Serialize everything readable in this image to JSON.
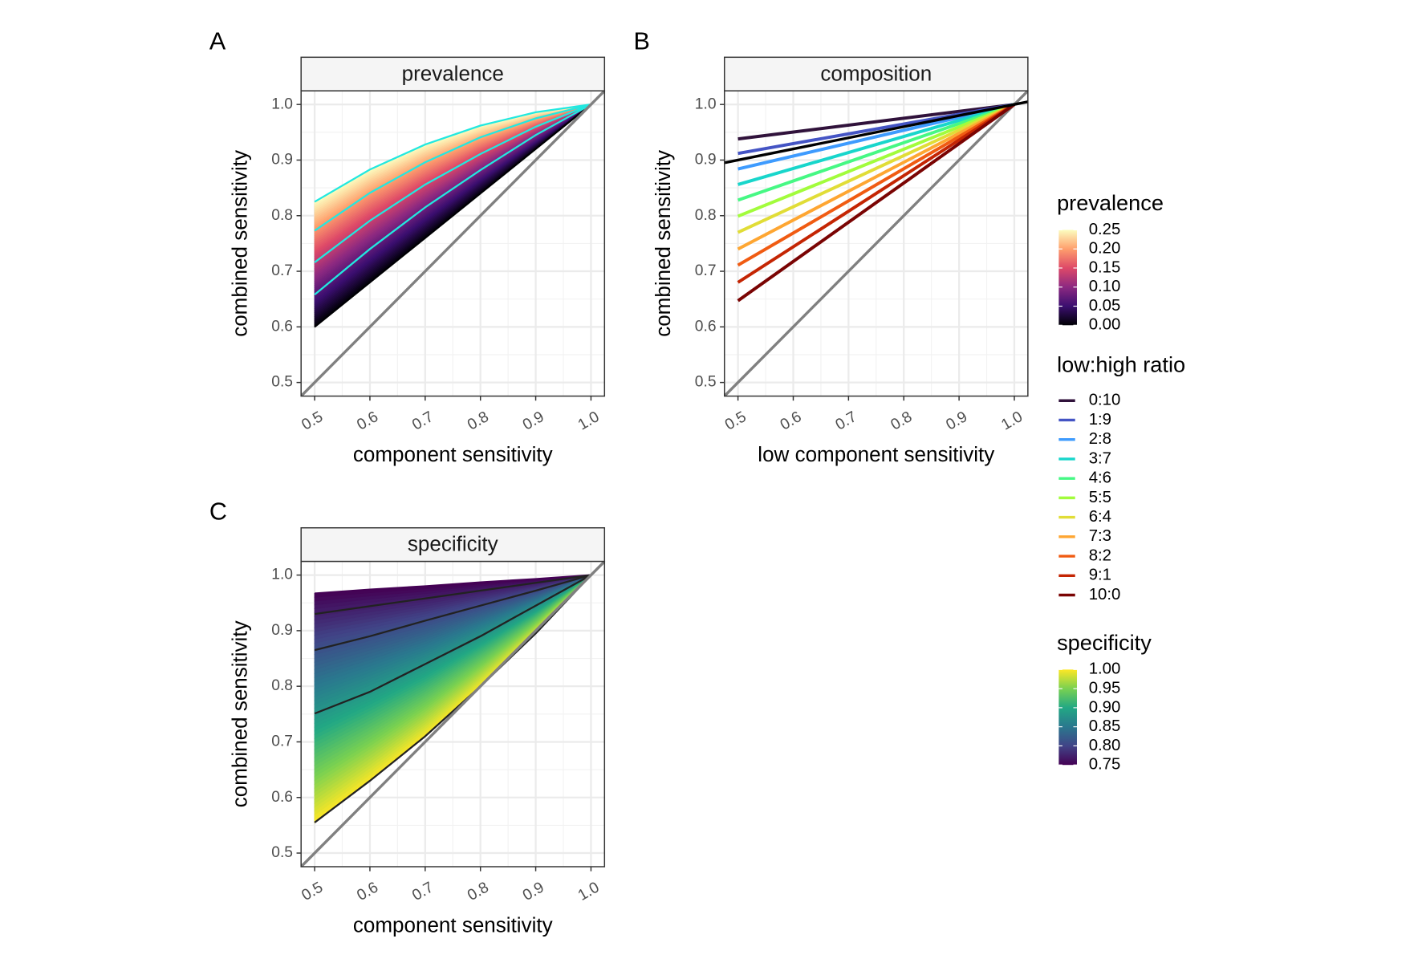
{
  "chart_data": [
    {
      "type": "line",
      "label": "A",
      "title": "prevalence",
      "xlabel": "component sensitivity",
      "ylabel": "combined sensitivity",
      "xlim": [
        0.4755,
        1.0245
      ],
      "ylim": [
        0.4755,
        1.0245
      ],
      "xticks": [
        0.5,
        0.6,
        0.7,
        0.8,
        0.9,
        {
          "value": 1,
          "label": "1.0"
        }
      ],
      "yticks": [
        0.5,
        0.6,
        0.7,
        0.8,
        0.9,
        {
          "value": 1,
          "label": "1.0"
        }
      ],
      "grid": true,
      "fill_colors": [
        "#000004",
        "#3b0f70",
        "#8c2981",
        "#de4968",
        "#fe9f6d",
        "#fcfdbf"
      ],
      "series": [
        {
          "color": "#000004",
          "x": [
            0.5,
            0.6,
            0.7,
            0.8,
            0.9,
            1.0
          ],
          "values": [
            0.6,
            0.68,
            0.76,
            0.84,
            0.92,
            1.0
          ]
        },
        {
          "color": "#22e8e0",
          "x": [
            0.5,
            0.6,
            0.7,
            0.8,
            0.9,
            1.0
          ],
          "values": [
            0.825,
            0.883,
            0.928,
            0.962,
            0.986,
            1.0
          ]
        },
        {
          "color": "#22e8e0",
          "x": [
            0.5,
            0.6,
            0.7,
            0.8,
            0.9,
            1.0
          ],
          "values": [
            0.773,
            0.841,
            0.896,
            0.941,
            0.975,
            1.0
          ]
        },
        {
          "color": "#22e8e0",
          "x": [
            0.5,
            0.6,
            0.7,
            0.8,
            0.9,
            1.0
          ],
          "values": [
            0.716,
            0.791,
            0.856,
            0.911,
            0.96,
            1.0
          ]
        },
        {
          "color": "#22e8e0",
          "x": [
            0.5,
            0.6,
            0.7,
            0.8,
            0.9,
            1.0
          ],
          "values": [
            0.658,
            0.74,
            0.815,
            0.882,
            0.945,
            1.0
          ]
        },
        {
          "color": "#808080",
          "x": [
            0.4755,
            1.0245
          ],
          "values": [
            0.4755,
            1.0245
          ]
        }
      ]
    },
    {
      "type": "line",
      "label": "B",
      "title": "composition",
      "xlabel": "low component sensitivity",
      "ylabel": "combined sensitivity",
      "xlim": [
        0.4755,
        1.0245
      ],
      "ylim": [
        0.4755,
        1.0245
      ],
      "xticks": [
        0.5,
        0.6,
        0.7,
        0.8,
        0.9,
        {
          "value": 1,
          "label": "1.0"
        }
      ],
      "yticks": [
        0.5,
        0.6,
        0.7,
        0.8,
        0.9,
        {
          "value": 1,
          "label": "1.0"
        }
      ],
      "grid": true,
      "series": [
        {
          "color": "#808080",
          "x": [
            0.4755,
            1.0245
          ],
          "values": [
            0.4755,
            1.0245
          ]
        },
        {
          "name": "0:10",
          "color": "#30123b",
          "x": [
            0.5,
            1.0
          ],
          "values": [
            0.938,
            1.0
          ]
        },
        {
          "name": "1:9",
          "color": "#4454c4",
          "x": [
            0.5,
            1.0
          ],
          "values": [
            0.912,
            1.0
          ]
        },
        {
          "name": "2:8",
          "color": "#3e9bfe",
          "x": [
            0.5,
            1.0
          ],
          "values": [
            0.884,
            1.0
          ]
        },
        {
          "name": "3:7",
          "color": "#18d6cb",
          "x": [
            0.5,
            1.0
          ],
          "values": [
            0.856,
            1.0
          ]
        },
        {
          "name": "4:6",
          "color": "#46f884",
          "x": [
            0.5,
            1.0
          ],
          "values": [
            0.828,
            1.0
          ]
        },
        {
          "name": "5:5",
          "color": "#a2fc3c",
          "x": [
            0.5,
            1.0
          ],
          "values": [
            0.799,
            1.0
          ]
        },
        {
          "name": "6:4",
          "color": "#e1dd37",
          "x": [
            0.5,
            1.0
          ],
          "values": [
            0.77,
            1.0
          ]
        },
        {
          "name": "7:3",
          "color": "#fea632",
          "x": [
            0.5,
            1.0
          ],
          "values": [
            0.74,
            1.0
          ]
        },
        {
          "name": "8:2",
          "color": "#f05b12",
          "x": [
            0.5,
            1.0
          ],
          "values": [
            0.711,
            1.0
          ]
        },
        {
          "name": "9:1",
          "color": "#c42503",
          "x": [
            0.5,
            1.0
          ],
          "values": [
            0.68,
            1.0
          ]
        },
        {
          "name": "10:0",
          "color": "#7a0403",
          "x": [
            0.5,
            1.0
          ],
          "values": [
            0.647,
            1.0
          ]
        },
        {
          "color": "#000000",
          "x": [
            0.4755,
            1.0245
          ],
          "values": [
            0.8951,
            1.0049
          ]
        }
      ]
    },
    {
      "type": "line",
      "label": "C",
      "title": "specificity",
      "xlabel": "component sensitivity",
      "ylabel": "combined sensitivity",
      "xlim": [
        0.4755,
        1.0245
      ],
      "ylim": [
        0.4755,
        1.0245
      ],
      "xticks": [
        0.5,
        0.6,
        0.7,
        0.8,
        0.9,
        {
          "value": 1,
          "label": "1.0"
        }
      ],
      "yticks": [
        0.5,
        0.6,
        0.7,
        0.8,
        0.9,
        {
          "value": 1,
          "label": "1.0"
        }
      ],
      "grid": true,
      "fill_colors": [
        "#fde725",
        "#7ad151",
        "#22a884",
        "#2a788e",
        "#414487",
        "#440154"
      ],
      "series": [
        {
          "color": "#222222",
          "x": [
            0.5,
            0.6,
            0.7,
            0.8,
            0.9,
            1.0
          ],
          "values": [
            0.555,
            0.63,
            0.71,
            0.8,
            0.895,
            1.0
          ]
        },
        {
          "color": "#440154",
          "x": [
            0.5,
            0.6,
            0.7,
            0.8,
            0.9,
            1.0
          ],
          "values": [
            0.967,
            0.974,
            0.98,
            0.987,
            0.993,
            1.0
          ]
        },
        {
          "color": "#222222",
          "x": [
            0.5,
            0.6,
            0.7,
            0.8,
            0.9,
            1.0
          ],
          "values": [
            0.93,
            0.944,
            0.958,
            0.972,
            0.986,
            1.0
          ]
        },
        {
          "color": "#222222",
          "x": [
            0.5,
            0.6,
            0.7,
            0.8,
            0.9,
            1.0
          ],
          "values": [
            0.865,
            0.89,
            0.918,
            0.945,
            0.972,
            1.0
          ]
        },
        {
          "color": "#222222",
          "x": [
            0.5,
            0.6,
            0.7,
            0.8,
            0.9,
            1.0
          ],
          "values": [
            0.751,
            0.79,
            0.84,
            0.89,
            0.945,
            1.0
          ]
        },
        {
          "color": "#808080",
          "x": [
            0.4755,
            1.0245
          ],
          "values": [
            0.4755,
            1.0245
          ]
        }
      ]
    }
  ],
  "legends": [
    {
      "type": "colorbar",
      "title": "prevalence",
      "limits": [
        0,
        0.25
      ],
      "ticks": [
        {
          "value": 0,
          "label": "0.00"
        },
        0.05,
        {
          "value": 0.1,
          "label": "0.10"
        },
        0.15,
        {
          "value": 0.2,
          "label": "0.20"
        },
        0.25
      ],
      "colors": [
        "#000004",
        "#3b0f70",
        "#8c2981",
        "#de4968",
        "#fe9f6d",
        "#fcfdbf"
      ]
    },
    {
      "type": "lines",
      "title": "low:high ratio"
    },
    {
      "type": "colorbar",
      "title": "specificity",
      "limits": [
        0.75,
        1
      ],
      "ticks": [
        0.75,
        {
          "value": 0.8,
          "label": "0.80"
        },
        0.85,
        {
          "value": 0.9,
          "label": "0.90"
        },
        0.95,
        {
          "value": 1,
          "label": "1.00"
        }
      ],
      "colors": [
        "#440154",
        "#414487",
        "#2a788e",
        "#22a884",
        "#7ad151",
        "#fde725"
      ]
    }
  ]
}
